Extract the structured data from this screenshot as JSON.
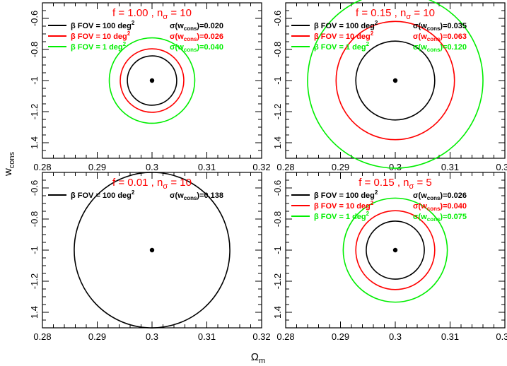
{
  "figure": {
    "ylabel": "w",
    "ylabel_sub": "cons",
    "xlabel": "Ω",
    "xlabel_sub": "m"
  },
  "colors": {
    "black": "#000000",
    "red": "#ff0000",
    "green": "#00ee00"
  },
  "chart_data": [
    {
      "type": "scatter",
      "title": "f = 1.00 , n",
      "title_sub": "σ",
      "title_tail": " = 10",
      "xlim": [
        0.28,
        0.32
      ],
      "ylim": [
        -0.5,
        -1.5
      ],
      "xticks": [
        "0.28",
        "0.29",
        "0.3",
        "0.31",
        "0.32"
      ],
      "yticks": [
        "-0.6",
        "-0.8",
        "-1",
        "-1.2",
        "1.4"
      ],
      "fiducial": {
        "x": 0.3,
        "y": -1.0
      },
      "legend": "top-left",
      "series": [
        {
          "name": "β FOV = 100 deg",
          "name_sup": "2",
          "sigma_label": "σ(w",
          "sigma_sub": "cons",
          "sigma_value": ")=0.020",
          "color": "#000000",
          "ellipse": {
            "cx": 0.3,
            "cy": -1.0,
            "rx": 0.0045,
            "ry": 0.022,
            "angle": -6
          }
        },
        {
          "name": "β FOV =  10 deg",
          "name_sup": "2",
          "sigma_label": "σ(w",
          "sigma_sub": "cons",
          "sigma_value": ")=0.026",
          "color": "#ff0000",
          "ellipse": {
            "cx": 0.3,
            "cy": -1.0,
            "rx": 0.0058,
            "ry": 0.03,
            "angle": -6
          }
        },
        {
          "name": "β FOV =   1 deg",
          "name_sup": "2",
          "sigma_label": "σ(w",
          "sigma_sub": "cons",
          "sigma_value": ")=0.040",
          "color": "#00ee00",
          "ellipse": {
            "cx": 0.3,
            "cy": -1.0,
            "rx": 0.0078,
            "ry": 0.045,
            "angle": -6
          }
        }
      ]
    },
    {
      "type": "scatter",
      "title": "f = 0.15 , n",
      "title_sub": "σ",
      "title_tail": " = 10",
      "xlim": [
        0.28,
        0.32
      ],
      "ylim": [
        -0.5,
        -1.5
      ],
      "xticks": [
        "0.28",
        "0.29",
        "0.3",
        "0.31",
        "0.32"
      ],
      "yticks": [
        "-0.6",
        "-0.8",
        "-1",
        "-1.2",
        "1.4"
      ],
      "fiducial": {
        "x": 0.3,
        "y": -1.0
      },
      "legend": "top-left",
      "series": [
        {
          "name": "β FOV = 100 deg",
          "name_sup": "2",
          "sigma_label": "σ(w",
          "sigma_sub": "cons",
          "sigma_value": ")=0.035",
          "color": "#000000",
          "ellipse": {
            "cx": 0.3,
            "cy": -1.0,
            "rx": 0.0072,
            "ry": 0.05,
            "angle": -12
          }
        },
        {
          "name": "β FOV =  10 deg",
          "name_sup": "2",
          "sigma_label": "σ(w",
          "sigma_sub": "cons",
          "sigma_value": ")=0.063",
          "color": "#ff0000",
          "ellipse": {
            "cx": 0.3,
            "cy": -1.0,
            "rx": 0.0108,
            "ry": 0.1,
            "angle": -12
          }
        },
        {
          "name": "β FOV =   1 deg",
          "name_sup": "2",
          "sigma_label": "σ(w",
          "sigma_sub": "cons",
          "sigma_value": ")=0.120",
          "color": "#00ee00",
          "ellipse": {
            "cx": 0.3,
            "cy": -1.0,
            "rx": 0.016,
            "ry": 0.165,
            "angle": -12
          }
        }
      ]
    },
    {
      "type": "scatter",
      "title": "f = 0.01 , n",
      "title_sub": "σ",
      "title_tail": " = 10",
      "xlim": [
        0.28,
        0.32
      ],
      "ylim": [
        -0.5,
        -1.5
      ],
      "xticks": [
        "0.28",
        "0.29",
        "0.3",
        "0.31",
        "0.32"
      ],
      "yticks": [
        "-0.6",
        "-0.8",
        "-1",
        "-1.2",
        "1.4"
      ],
      "fiducial": {
        "x": 0.3,
        "y": -1.0
      },
      "legend": "top-left",
      "series": [
        {
          "name": "β FOV = 100 deg",
          "name_sup": "2",
          "sigma_label": "σ(w",
          "sigma_sub": "cons",
          "sigma_value": ")=0.138",
          "color": "#000000",
          "ellipse": {
            "cx": 0.3,
            "cy": -1.0,
            "rx": 0.0142,
            "ry": 0.21,
            "angle": -20
          }
        }
      ]
    },
    {
      "type": "scatter",
      "title": "f = 0.15 , n",
      "title_sub": "σ",
      "title_tail": " =  5",
      "xlim": [
        0.28,
        0.32
      ],
      "ylim": [
        -0.5,
        -1.5
      ],
      "xticks": [
        "0.28",
        "0.29",
        "0.3",
        "0.31",
        "0.32"
      ],
      "yticks": [
        "-0.6",
        "-0.8",
        "-1",
        "-1.2",
        "1.4"
      ],
      "fiducial": {
        "x": 0.3,
        "y": -1.0
      },
      "legend": "top-left",
      "series": [
        {
          "name": "β FOV = 100 deg",
          "name_sup": "2",
          "sigma_label": "σ(w",
          "sigma_sub": "cons",
          "sigma_value": ")=0.026",
          "color": "#000000",
          "ellipse": {
            "cx": 0.3,
            "cy": -1.0,
            "rx": 0.0053,
            "ry": 0.03,
            "angle": -10
          }
        },
        {
          "name": "β FOV =  10 deg",
          "name_sup": "2",
          "sigma_label": "σ(w",
          "sigma_sub": "cons",
          "sigma_value": ")=0.040",
          "color": "#ff0000",
          "ellipse": {
            "cx": 0.3,
            "cy": -1.0,
            "rx": 0.0072,
            "ry": 0.048,
            "angle": -10
          }
        },
        {
          "name": "β FOV =   1 deg",
          "name_sup": "2",
          "sigma_label": "σ(w",
          "sigma_sub": "cons",
          "sigma_value": ")=0.075",
          "color": "#00ee00",
          "ellipse": {
            "cx": 0.3,
            "cy": -1.0,
            "rx": 0.0095,
            "ry": 0.085,
            "angle": -10
          }
        }
      ]
    }
  ]
}
